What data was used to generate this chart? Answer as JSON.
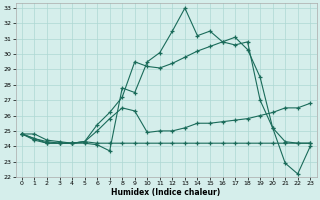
{
  "xlabel": "Humidex (Indice chaleur)",
  "background_color": "#d5eeeb",
  "grid_color": "#aed8d4",
  "line_color": "#1a6b5a",
  "xlim": [
    -0.5,
    23.5
  ],
  "ylim": [
    22,
    33.3
  ],
  "xticks": [
    0,
    1,
    2,
    3,
    4,
    5,
    6,
    7,
    8,
    9,
    10,
    11,
    12,
    13,
    14,
    15,
    16,
    17,
    18,
    19,
    20,
    21,
    22,
    23
  ],
  "yticks": [
    22,
    23,
    24,
    25,
    26,
    27,
    28,
    29,
    30,
    31,
    32,
    33
  ],
  "line1_x": [
    0,
    1,
    2,
    3,
    4,
    5,
    6,
    7,
    8,
    9,
    10,
    11,
    12,
    13,
    14,
    15,
    16,
    17,
    18,
    19,
    20,
    21,
    22,
    23
  ],
  "line1_y": [
    24.8,
    24.8,
    24.4,
    24.3,
    24.2,
    24.2,
    24.1,
    23.7,
    27.8,
    27.5,
    29.5,
    30.1,
    31.5,
    33.0,
    31.2,
    31.5,
    30.8,
    31.1,
    30.3,
    28.5,
    25.2,
    22.9,
    22.2,
    24.0
  ],
  "line2_x": [
    0,
    1,
    2,
    3,
    4,
    5,
    6,
    7,
    8,
    9,
    10,
    11,
    12,
    13,
    14,
    15,
    16,
    17,
    18,
    19,
    20,
    21,
    22,
    23
  ],
  "line2_y": [
    24.8,
    24.5,
    24.3,
    24.2,
    24.2,
    24.3,
    25.4,
    26.2,
    27.2,
    29.5,
    29.2,
    29.1,
    29.4,
    29.8,
    30.2,
    30.5,
    30.8,
    30.6,
    30.8,
    27.0,
    25.2,
    24.3,
    24.2,
    24.2
  ],
  "line3_x": [
    0,
    1,
    2,
    3,
    4,
    5,
    6,
    7,
    8,
    9,
    10,
    11,
    12,
    13,
    14,
    15,
    16,
    17,
    18,
    19,
    20,
    21,
    22,
    23
  ],
  "line3_y": [
    24.8,
    24.5,
    24.2,
    24.2,
    24.2,
    24.3,
    25.0,
    25.8,
    26.5,
    26.3,
    24.9,
    25.0,
    25.0,
    25.2,
    25.5,
    25.5,
    25.6,
    25.7,
    25.8,
    26.0,
    26.2,
    26.5,
    26.5,
    26.8
  ],
  "line4_x": [
    0,
    1,
    2,
    3,
    4,
    5,
    6,
    7,
    8,
    9,
    10,
    11,
    12,
    13,
    14,
    15,
    16,
    17,
    18,
    19,
    20,
    21,
    22,
    23
  ],
  "line4_y": [
    24.8,
    24.4,
    24.2,
    24.2,
    24.2,
    24.3,
    24.2,
    24.2,
    24.2,
    24.2,
    24.2,
    24.2,
    24.2,
    24.2,
    24.2,
    24.2,
    24.2,
    24.2,
    24.2,
    24.2,
    24.2,
    24.2,
    24.2,
    24.2
  ]
}
